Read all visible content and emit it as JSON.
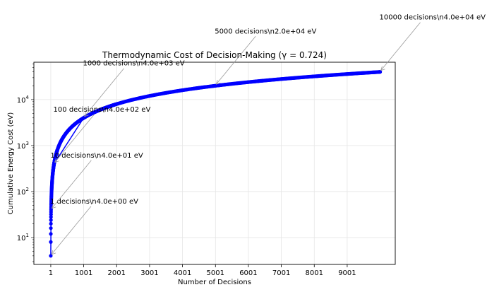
{
  "chart_data": {
    "type": "line",
    "title": "Thermodynamic Cost of Decision-Making (γ = 0.724)",
    "xlabel": "Number of Decisions",
    "ylabel": "Cumulative Energy Cost (eV)",
    "yscale": "log",
    "xlim": [
      -512,
      10460
    ],
    "ylim": [
      2.6,
      65000
    ],
    "xticks": [
      1,
      1001,
      2001,
      3001,
      4001,
      5001,
      6001,
      7001,
      8001,
      9001
    ],
    "xtick_labels": [
      "1",
      "1001",
      "2001",
      "3001",
      "4001",
      "5001",
      "6001",
      "7001",
      "8001",
      "9001"
    ],
    "yticks": [
      10,
      100,
      1000,
      10000
    ],
    "ytick_labels": [
      [
        "10",
        "1"
      ],
      [
        "10",
        "2"
      ],
      [
        "10",
        "3"
      ],
      [
        "10",
        "4"
      ]
    ],
    "grid": true,
    "series": [
      {
        "color": "#0000ff",
        "marker": "circle",
        "x": [
          1,
          10,
          100,
          1000,
          2000,
          3000,
          4000,
          5000,
          6000,
          7000,
          8000,
          9000,
          10000
        ],
        "y": [
          4,
          40,
          400,
          4000,
          8000,
          12000,
          16000,
          20000,
          24000,
          28000,
          32000,
          36000,
          40000
        ]
      }
    ],
    "annotations": [
      {
        "text": "1 decisions\\n4.0e+00 eV",
        "x": 1,
        "y": 4
      },
      {
        "text": "10 decisions\\n4.0e+01 eV",
        "x": 10,
        "y": 40
      },
      {
        "text": "100 decisions\\n4.0e+02 eV",
        "x": 100,
        "y": 400
      },
      {
        "text": "1000 decisions\\n4.0e+03 eV",
        "x": 1000,
        "y": 4000
      },
      {
        "text": "5000 decisions\\n2.0e+04 eV",
        "x": 5000,
        "y": 20000
      },
      {
        "text": "10000 decisions\\n4.0e+04 eV",
        "x": 10000,
        "y": 40000
      }
    ]
  }
}
